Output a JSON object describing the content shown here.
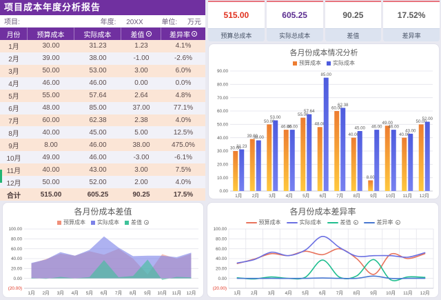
{
  "report": {
    "title": "项目成本年度分析报告",
    "meta": {
      "project_label": "项目:",
      "year_label": "年度:",
      "year_value": "20XX",
      "unit_label": "单位:",
      "unit_value": "万元"
    },
    "table": {
      "headers": [
        "月份",
        "预算成本",
        "实际成本",
        "差值",
        "差异率"
      ],
      "filter_columns": [
        3,
        4
      ],
      "rows": [
        [
          "1月",
          "30.00",
          "31.23",
          "1.23",
          "4.1%"
        ],
        [
          "2月",
          "39.00",
          "38.00",
          "-1.00",
          "-2.6%"
        ],
        [
          "3月",
          "50.00",
          "53.00",
          "3.00",
          "6.0%"
        ],
        [
          "4月",
          "46.00",
          "46.00",
          "0.00",
          "0.0%"
        ],
        [
          "5月",
          "55.00",
          "57.64",
          "2.64",
          "4.8%"
        ],
        [
          "6月",
          "48.00",
          "85.00",
          "37.00",
          "77.1%"
        ],
        [
          "7月",
          "60.00",
          "62.38",
          "2.38",
          "4.0%"
        ],
        [
          "8月",
          "40.00",
          "45.00",
          "5.00",
          "12.5%"
        ],
        [
          "9月",
          "8.00",
          "46.00",
          "38.00",
          "475.0%"
        ],
        [
          "10月",
          "49.00",
          "46.00",
          "-3.00",
          "-6.1%"
        ],
        [
          "11月",
          "40.00",
          "43.00",
          "3.00",
          "7.5%"
        ],
        [
          "12月",
          "50.00",
          "52.00",
          "2.00",
          "4.0%"
        ]
      ],
      "total_row": [
        "合计",
        "515.00",
        "605.25",
        "90.25",
        "17.5%"
      ]
    }
  },
  "summary": {
    "cards": [
      {
        "value": "515.00",
        "label": "预算总成本",
        "color": "#E0301E"
      },
      {
        "value": "605.25",
        "label": "实际总成本",
        "color": "#5B2D90"
      },
      {
        "value": "90.25",
        "label": "差值",
        "color": "#595959"
      },
      {
        "value": "17.52%",
        "label": "差异率",
        "color": "#595959"
      }
    ]
  },
  "chart_data": [
    {
      "id": "monthly-cost-bar",
      "type": "bar",
      "title": "各月份成本情况分析",
      "categories": [
        "1月",
        "2月",
        "3月",
        "4月",
        "5月",
        "6月",
        "7月",
        "8月",
        "9月",
        "10月",
        "11月",
        "12月"
      ],
      "series": [
        {
          "name": "预算成本",
          "values": [
            30,
            39,
            50,
            46,
            55,
            48,
            60,
            40,
            8,
            49,
            40,
            50
          ],
          "color": "#ED7D31",
          "color2": "#FFC83D",
          "icon": false
        },
        {
          "name": "实际成本",
          "values": [
            31.23,
            38,
            53,
            46,
            57.64,
            85,
            62.38,
            45,
            46,
            46,
            43,
            52
          ],
          "color": "#4E5CDE",
          "color2": "#7680F0",
          "icon": false
        }
      ],
      "ylim": [
        0,
        90
      ],
      "ytick": 10,
      "grid": "horizontal",
      "legend_position": "top",
      "data_labels": true
    },
    {
      "id": "monthly-diff-area",
      "type": "area",
      "title": "各月份成本差值",
      "categories": [
        "1月",
        "2月",
        "3月",
        "4月",
        "5月",
        "6月",
        "7月",
        "8月",
        "9月",
        "10月",
        "11月",
        "12月"
      ],
      "series": [
        {
          "name": "预算成本",
          "values": [
            30,
            39,
            50,
            46,
            55,
            48,
            60,
            40,
            8,
            49,
            40,
            50
          ],
          "color": "#F0907A",
          "opacity": 0.55,
          "icon": false
        },
        {
          "name": "实际成本",
          "values": [
            31.23,
            38,
            53,
            46,
            57.64,
            85,
            62.38,
            45,
            46,
            46,
            43,
            52
          ],
          "color": "#7D82E8",
          "opacity": 0.62,
          "icon": false
        },
        {
          "name": "差值",
          "values": [
            1.23,
            -1,
            3,
            0,
            2.64,
            37,
            2.38,
            5,
            38,
            -3,
            3,
            2
          ],
          "color": "#3EC29A",
          "opacity": 0.6,
          "icon": true
        }
      ],
      "ylim": [
        -20,
        100
      ],
      "ytick": 20,
      "grid": "horizontal",
      "legend_position": "top",
      "negative_label_color": "#E0301E"
    },
    {
      "id": "monthly-rate-line",
      "type": "line",
      "title": "各月份成本差异率",
      "categories": [
        "1月",
        "2月",
        "3月",
        "4月",
        "5月",
        "6月",
        "7月",
        "8月",
        "9月",
        "10月",
        "11月",
        "12月"
      ],
      "series": [
        {
          "name": "预算成本",
          "values": [
            30,
            39,
            50,
            46,
            55,
            48,
            60,
            40,
            8,
            49,
            40,
            50
          ],
          "color": "#E8735C",
          "icon": false
        },
        {
          "name": "实际成本",
          "values": [
            31.23,
            38,
            53,
            46,
            57.64,
            85,
            62.38,
            45,
            46,
            46,
            43,
            52
          ],
          "color": "#6A6FE2",
          "icon": false
        },
        {
          "name": "差值",
          "values": [
            1.23,
            -1,
            3,
            0,
            2.64,
            37,
            2.38,
            5,
            38,
            -3,
            3,
            2
          ],
          "color": "#1FBE8F",
          "icon": true
        },
        {
          "name": "差异率",
          "values": [
            0.041,
            -0.026,
            0.06,
            0,
            0.048,
            0.771,
            0.04,
            0.125,
            4.75,
            -0.061,
            0.075,
            0.04
          ],
          "color": "#4777D0",
          "icon": true
        }
      ],
      "ylim": [
        -20,
        100
      ],
      "ytick": 20,
      "grid": "both",
      "legend_position": "top",
      "negative_label_color": "#E0301E"
    }
  ]
}
